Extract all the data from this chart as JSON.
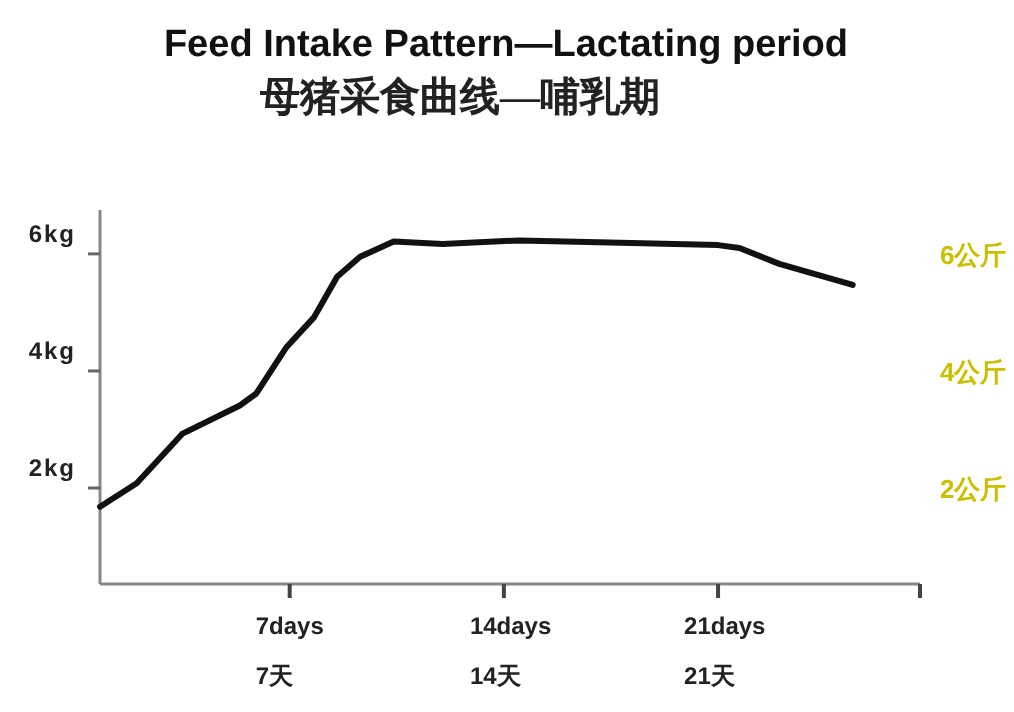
{
  "chart_data": {
    "type": "line",
    "title": "Feed Intake Pattern—Lactating period",
    "subtitle": "母猪采食曲线—哺乳期",
    "x": [
      0.8,
      2.0,
      3.5,
      5.37,
      5.9,
      6.9,
      7.8,
      8.55,
      9.3,
      10.4,
      12.0,
      14.5,
      17.1,
      21.0,
      21.7,
      23.0,
      25.4
    ],
    "values": [
      1.68,
      2.08,
      2.93,
      3.41,
      3.61,
      4.41,
      4.92,
      5.61,
      5.95,
      6.21,
      6.17,
      6.23,
      6.2,
      6.15,
      6.1,
      5.83,
      5.47
    ],
    "color": "#111111",
    "xlim": [
      0.8,
      27.6
    ],
    "xticks": [
      {
        "value": 7,
        "label": "7days"
      },
      {
        "value": 14,
        "label": "14days"
      },
      {
        "value": 21,
        "label": "21days"
      },
      {
        "value": 27.6,
        "label": null
      }
    ],
    "annotations": [
      "7天",
      "14天",
      "21天"
    ],
    "ylim": [
      0.36,
      6.75
    ],
    "yticks": [
      {
        "value": 2,
        "label": "2kg"
      },
      {
        "value": 4,
        "label": "4kg"
      },
      {
        "value": 6,
        "label": "6kg"
      }
    ],
    "y2lim": [
      0.36,
      6.75
    ],
    "y2ticks": [
      {
        "value": 2,
        "label": "2公斤"
      },
      {
        "value": 4,
        "label": "4公斤"
      },
      {
        "value": 6,
        "label": "6公斤"
      }
    ]
  }
}
